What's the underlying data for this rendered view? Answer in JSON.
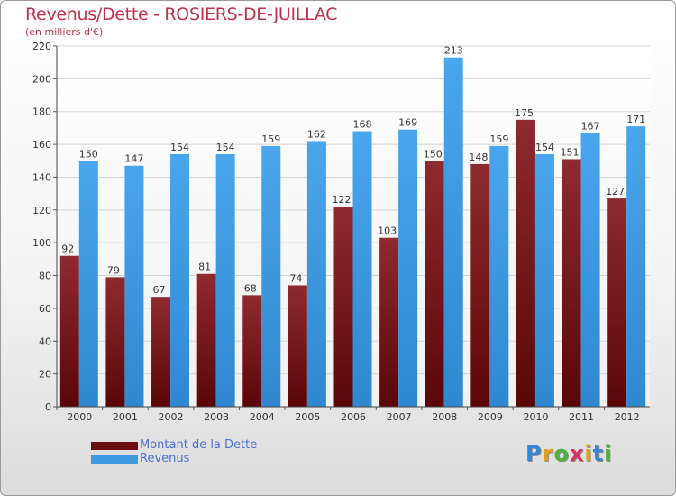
{
  "chart_data": {
    "type": "bar",
    "title": "Revenus/Dette - ROSIERS-DE-JUILLAC",
    "subtitle": "(en milliers d'€)",
    "categories": [
      "2000",
      "2001",
      "2002",
      "2003",
      "2004",
      "2005",
      "2006",
      "2007",
      "2008",
      "2009",
      "2010",
      "2011",
      "2012"
    ],
    "series": [
      {
        "name": "Montant de la Dette",
        "color": "#7a1218",
        "values": [
          92,
          79,
          67,
          81,
          68,
          74,
          122,
          103,
          150,
          148,
          175,
          151,
          127
        ]
      },
      {
        "name": "Revenus",
        "color": "#3f9be0",
        "values": [
          150,
          147,
          154,
          154,
          159,
          162,
          168,
          169,
          213,
          159,
          154,
          167,
          171
        ]
      }
    ],
    "ylim": [
      0,
      220
    ],
    "yticks": [
      0,
      20,
      40,
      60,
      80,
      100,
      120,
      140,
      160,
      180,
      200,
      220
    ],
    "grid": true,
    "legend_position": "bottom-left"
  },
  "logo": {
    "letters": [
      "P",
      "r",
      "o",
      "x",
      "i",
      "t",
      "i"
    ],
    "colors": [
      "#3a86d6",
      "#e0a020",
      "#50b040",
      "#e03060",
      "#e0a020",
      "#3a86d6",
      "#50b040"
    ]
  }
}
